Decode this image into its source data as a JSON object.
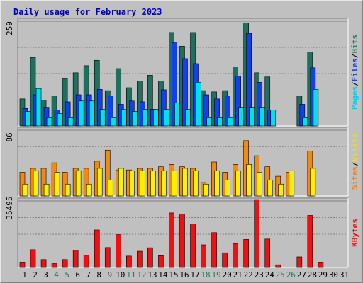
{
  "chart_data": {
    "type": "bar",
    "title": "Daily usage for February 2023",
    "days": [
      "1",
      "2",
      "3",
      "4",
      "5",
      "6",
      "7",
      "8",
      "9",
      "10",
      "11",
      "12",
      "13",
      "14",
      "15",
      "16",
      "17",
      "18",
      "19",
      "20",
      "21",
      "22",
      "23",
      "24",
      "25",
      "26",
      "27",
      "28",
      "29",
      "30",
      "31"
    ],
    "weekend_days": [
      "4",
      "5",
      "11",
      "12",
      "18",
      "19",
      "25",
      "26"
    ],
    "panels": [
      {
        "id": "top",
        "ymax": 259,
        "ymax_label": "259",
        "axis_label": [
          "Pages",
          "/",
          "Files",
          "/",
          "Hits"
        ],
        "axis_label_colors": [
          "#00d0f0",
          "#000000",
          "#1040f0",
          "#000000",
          "#208060"
        ],
        "series": [
          {
            "name": "Hits",
            "color": "#207060",
            "values": [
              65,
              165,
              62,
              72,
              115,
              128,
              145,
              158,
              85,
              138,
              92,
              108,
              122,
              108,
              225,
              192,
              225,
              85,
              82,
              85,
              142,
              248,
              128,
              118,
              0,
              0,
              72,
              178,
              0,
              0,
              0
            ]
          },
          {
            "name": "Files",
            "color": "#1040f0",
            "values": [
              42,
              75,
              45,
              38,
              58,
              75,
              75,
              88,
              72,
              52,
              60,
              58,
              40,
              87,
              200,
              162,
              150,
              75,
              65,
              72,
              120,
              223,
              105,
              38,
              0,
              0,
              52,
              140,
              0,
              0,
              0
            ]
          },
          {
            "name": "Pages",
            "color": "#00e0f0",
            "values": [
              35,
              90,
              20,
              30,
              20,
              60,
              60,
              40,
              20,
              40,
              35,
              40,
              40,
              40,
              55,
              40,
              105,
              20,
              20,
              20,
              45,
              45,
              45,
              38,
              0,
              0,
              20,
              88,
              0,
              0,
              0
            ]
          }
        ]
      },
      {
        "id": "middle",
        "ymax": 86,
        "ymax_label": "86",
        "axis_label": [
          "Sites",
          "/",
          "Visits"
        ],
        "axis_label_colors": [
          "#f08010",
          "#000000",
          "#f0e000"
        ],
        "series": [
          {
            "name": "Sites",
            "color": "#f08a10",
            "values": [
              30,
              35,
              35,
              42,
              30,
              35,
              35,
              44,
              58,
              33,
              33,
              35,
              35,
              37,
              40,
              37,
              35,
              17,
              43,
              30,
              40,
              70,
              51,
              37,
              25,
              30,
              0,
              57,
              0,
              0,
              0
            ]
          },
          {
            "name": "Visits",
            "color": "#f8f000",
            "values": [
              15,
              32,
              15,
              30,
              15,
              32,
              15,
              35,
              20,
              35,
              32,
              32,
              32,
              32,
              32,
              35,
              32,
              15,
              32,
              20,
              32,
              40,
              30,
              20,
              15,
              32,
              0,
              35,
              0,
              0,
              0
            ]
          }
        ]
      },
      {
        "id": "bottom",
        "ymax": 35495,
        "ymax_label": "35495",
        "axis_label": [
          "KBytes"
        ],
        "axis_label_colors": [
          "#f01010"
        ],
        "series": [
          {
            "name": "KBytes",
            "color": "#f01010",
            "values": [
              2400,
              9200,
              4100,
              2000,
              4100,
              9000,
              6300,
              19400,
              10300,
              17000,
              5900,
              8400,
              10200,
              6100,
              28200,
              27700,
              22500,
              11700,
              18000,
              7600,
              12400,
              14500,
              35100,
              14700,
              1400,
              0,
              5500,
              26900,
              2400,
              0,
              0
            ]
          }
        ]
      }
    ]
  }
}
